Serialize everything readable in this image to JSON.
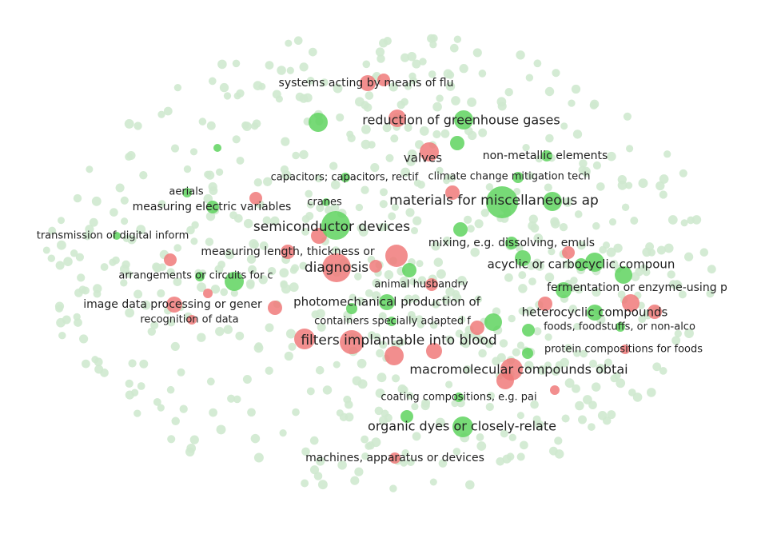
{
  "nodes": [
    {
      "label": "systems acting by means of flu"
    },
    {
      "label": "reduction of greenhouse gases"
    },
    {
      "label": "valves"
    },
    {
      "label": "non-metallic elements"
    },
    {
      "label": "capacitors; capacitors, rectif"
    },
    {
      "label": "climate change mitigation tech"
    },
    {
      "label": "aerials"
    },
    {
      "label": "measuring electric variables"
    },
    {
      "label": "cranes"
    },
    {
      "label": "materials for miscellaneous ap"
    },
    {
      "label": "semiconductor devices"
    },
    {
      "label": "transmission of digital inform"
    },
    {
      "label": "mixing, e.g. dissolving, emuls"
    },
    {
      "label": "measuring length, thickness or"
    },
    {
      "label": "diagnosis"
    },
    {
      "label": "acyclic or carbocyclic compoun"
    },
    {
      "label": "arrangements or circuits for c"
    },
    {
      "label": "animal husbandry"
    },
    {
      "label": "fermentation or enzyme-using p"
    },
    {
      "label": "image data processing or gener"
    },
    {
      "label": "photomechanical production of"
    },
    {
      "label": "heterocyclic compounds"
    },
    {
      "label": "recognition of data"
    },
    {
      "label": "containers specially adapted f"
    },
    {
      "label": "foods, foodstuffs, or non-alco"
    },
    {
      "label": "filters implantable into blood"
    },
    {
      "label": "protein compositions for foods"
    },
    {
      "label": "macromolecular compounds obtai"
    },
    {
      "label": "coating compositions, e.g. pai"
    },
    {
      "label": "organic dyes or closely-relate"
    },
    {
      "label": "machines, apparatus or devices"
    }
  ]
}
